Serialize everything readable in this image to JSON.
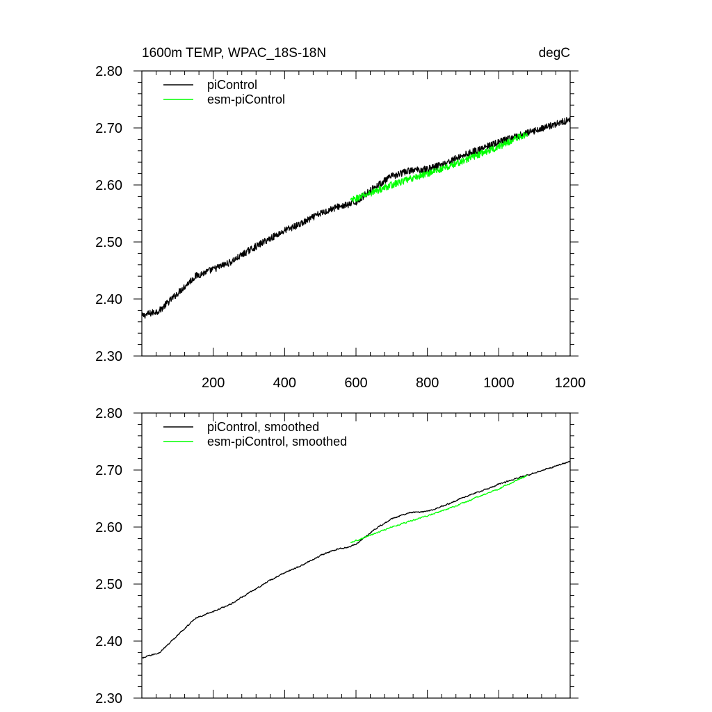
{
  "chart_data": [
    {
      "type": "line",
      "title": "1600m TEMP, WPAC_18S-18N",
      "units": "degC",
      "xlabel": "",
      "ylabel": "",
      "xlim": [
        0,
        1200
      ],
      "ylim": [
        2.3,
        2.8
      ],
      "x_ticks": [
        "200",
        "400",
        "600",
        "800",
        "1000",
        "1200"
      ],
      "y_ticks": [
        "2.80",
        "2.70",
        "2.60",
        "2.50",
        "2.40",
        "2.30"
      ],
      "legend_position": "top-left",
      "series": [
        {
          "name": "piControl",
          "color": "#000000",
          "x": [
            0,
            50,
            100,
            150,
            200,
            250,
            300,
            350,
            400,
            450,
            500,
            550,
            580,
            600,
            650,
            700,
            750,
            800,
            850,
            900,
            950,
            1000,
            1050,
            1100,
            1150,
            1200
          ],
          "values": [
            2.37,
            2.38,
            2.41,
            2.44,
            2.452,
            2.465,
            2.485,
            2.503,
            2.52,
            2.533,
            2.55,
            2.562,
            2.565,
            2.57,
            2.595,
            2.615,
            2.625,
            2.628,
            2.638,
            2.652,
            2.663,
            2.675,
            2.685,
            2.695,
            2.705,
            2.715
          ],
          "noise": 0.006
        },
        {
          "name": "esm-piControl",
          "color": "#00ff00",
          "x": [
            585,
            600,
            650,
            700,
            750,
            800,
            850,
            900,
            950,
            1000,
            1050,
            1080
          ],
          "values": [
            2.572,
            2.576,
            2.588,
            2.6,
            2.61,
            2.62,
            2.63,
            2.642,
            2.655,
            2.667,
            2.682,
            2.69
          ],
          "noise": 0.006
        }
      ]
    },
    {
      "type": "line",
      "title": "",
      "xlabel": "",
      "ylabel": "",
      "xlim": [
        0,
        1200
      ],
      "ylim": [
        2.3,
        2.8
      ],
      "y_ticks": [
        "2.80",
        "2.70",
        "2.60",
        "2.50",
        "2.40",
        "2.30"
      ],
      "legend_position": "top-left",
      "series": [
        {
          "name": "piControl, smoothed",
          "color": "#000000",
          "x": [
            0,
            50,
            100,
            150,
            200,
            250,
            300,
            350,
            400,
            450,
            500,
            550,
            580,
            600,
            650,
            700,
            750,
            800,
            850,
            900,
            950,
            1000,
            1050,
            1100,
            1150,
            1200
          ],
          "values": [
            2.37,
            2.38,
            2.41,
            2.44,
            2.452,
            2.465,
            2.485,
            2.503,
            2.52,
            2.533,
            2.55,
            2.562,
            2.565,
            2.57,
            2.595,
            2.615,
            2.625,
            2.628,
            2.638,
            2.652,
            2.663,
            2.675,
            2.685,
            2.695,
            2.705,
            2.715
          ],
          "noise": 0.0015
        },
        {
          "name": "esm-piControl, smoothed",
          "color": "#00ff00",
          "x": [
            585,
            600,
            650,
            700,
            750,
            800,
            850,
            900,
            950,
            1000,
            1050,
            1080
          ],
          "values": [
            2.572,
            2.576,
            2.588,
            2.6,
            2.61,
            2.62,
            2.63,
            2.642,
            2.655,
            2.667,
            2.682,
            2.69
          ],
          "noise": 0.0015
        }
      ]
    }
  ]
}
